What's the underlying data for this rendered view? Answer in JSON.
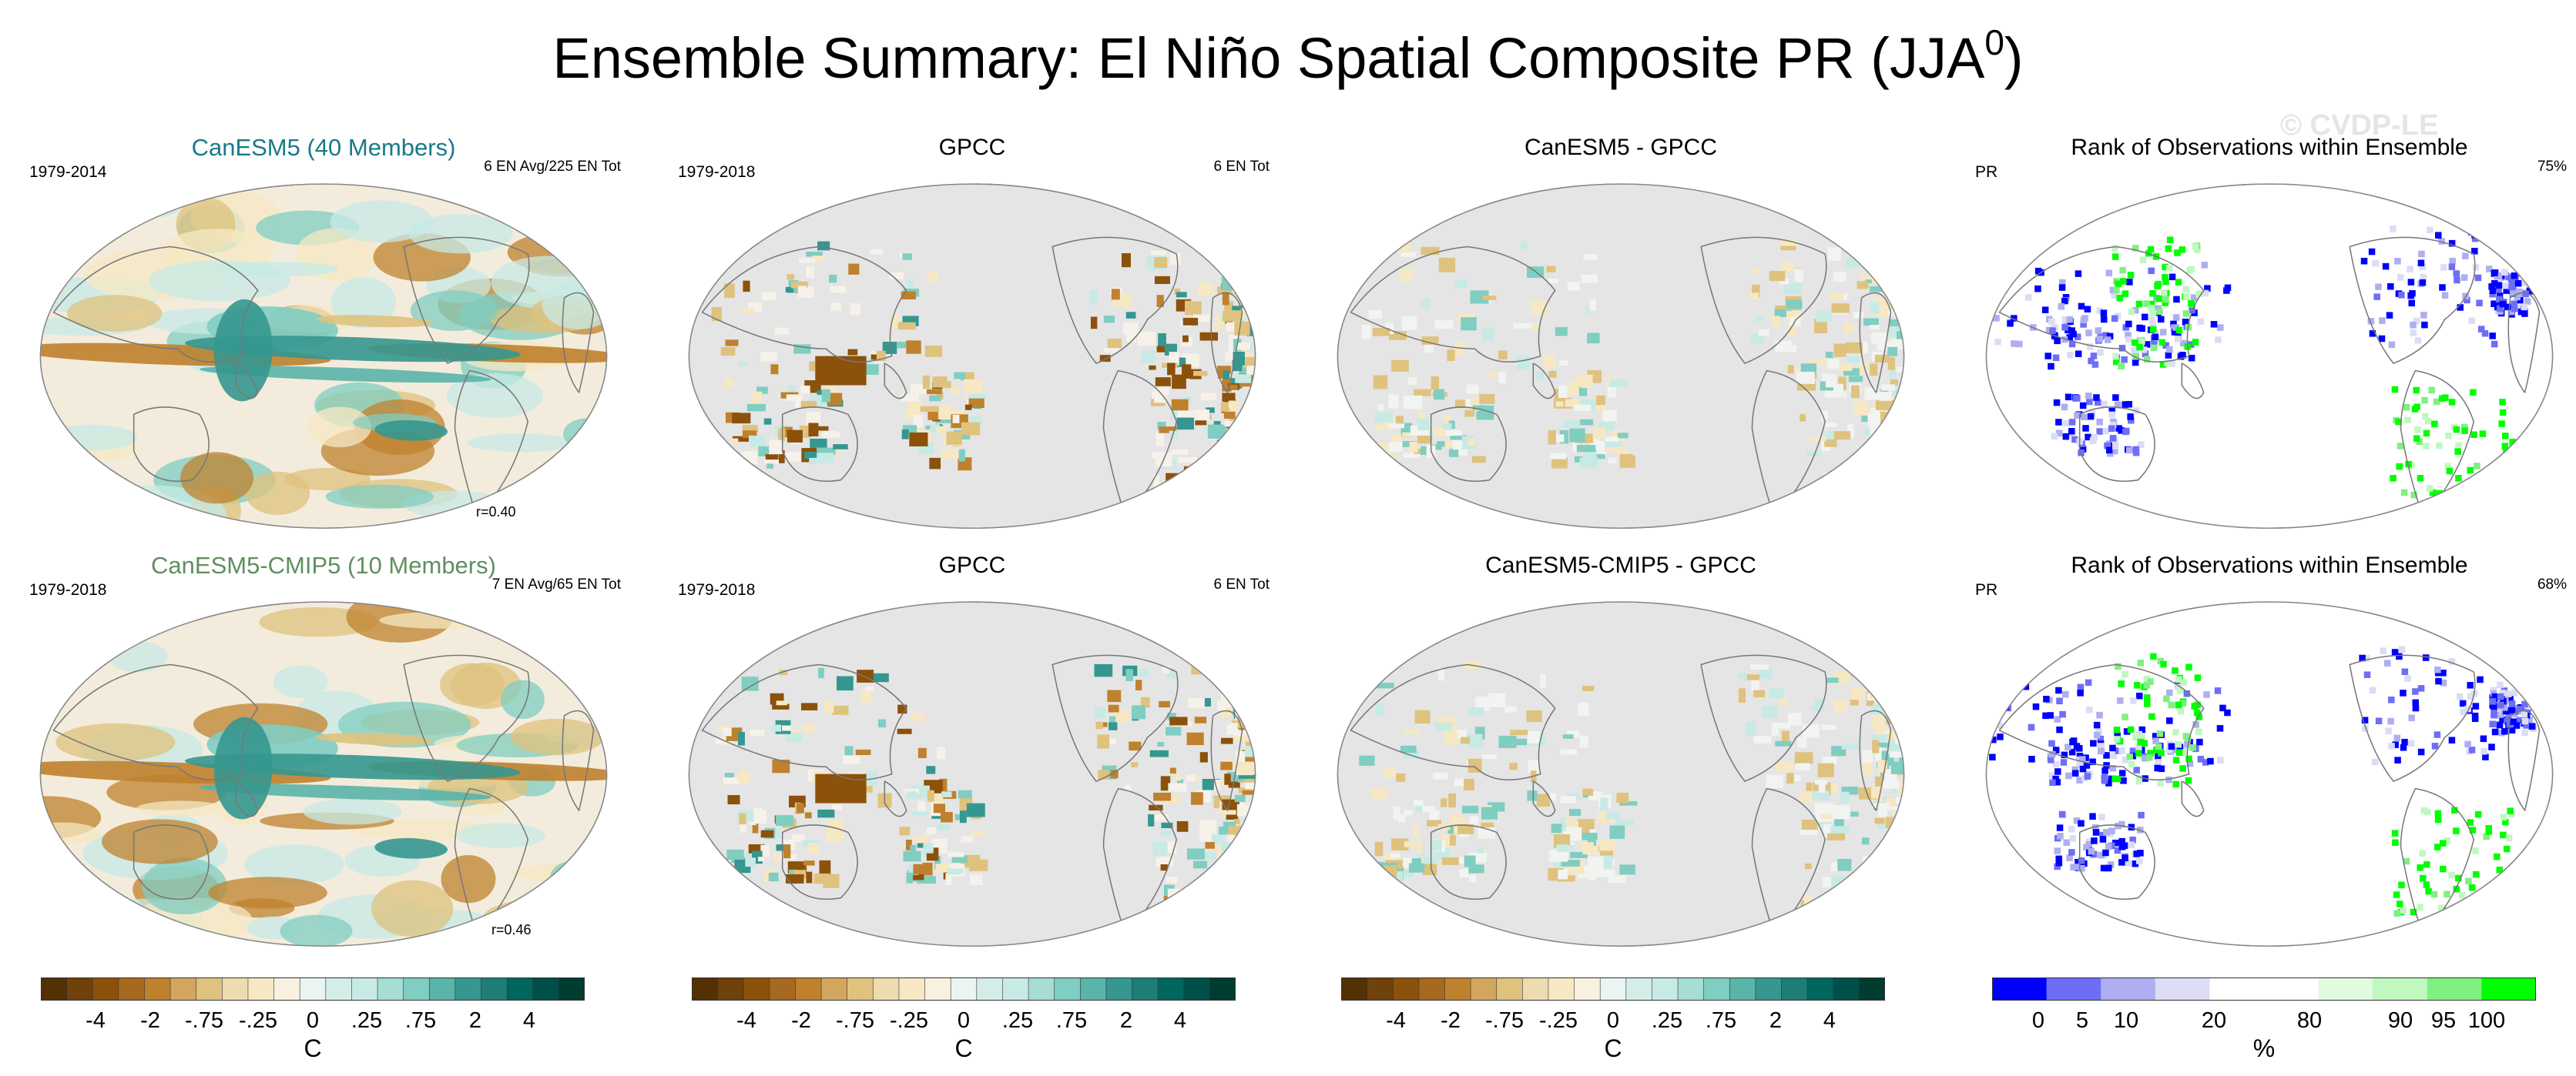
{
  "title": {
    "main": "Ensemble Summary: El Niño Spatial Composite PR (JJA",
    "superscript": "0",
    "suffix": ")"
  },
  "watermark": "© CVDP-LE",
  "panels": [
    {
      "title": "CanESM5 (40 Members)",
      "title_color": "#197a8a",
      "left_text": "1979-2014",
      "right_text": "6 EN Avg/225 EN Tot",
      "corr_text": "r=0.40",
      "kind": "model"
    },
    {
      "title": "GPCC",
      "title_color": "#000000",
      "left_text": "1979-2018",
      "right_text": "6 EN Tot",
      "corr_text": "",
      "kind": "obs"
    },
    {
      "title": "CanESM5 - GPCC",
      "title_color": "#000000",
      "left_text": "",
      "right_text": "",
      "corr_text": "",
      "kind": "diff"
    },
    {
      "title": "Rank of Observations within Ensemble",
      "title_color": "#000000",
      "left_text": "PR",
      "right_text": "75%",
      "corr_text": "",
      "kind": "rank"
    },
    {
      "title": "CanESM5-CMIP5 (10 Members)",
      "title_color": "#5f8f60",
      "left_text": "1979-2018",
      "right_text": "7 EN Avg/65 EN Tot",
      "corr_text": "r=0.46",
      "kind": "model"
    },
    {
      "title": "GPCC",
      "title_color": "#000000",
      "left_text": "1979-2018",
      "right_text": "6 EN Tot",
      "corr_text": "",
      "kind": "obs"
    },
    {
      "title": "CanESM5-CMIP5 - GPCC",
      "title_color": "#000000",
      "left_text": "",
      "right_text": "",
      "corr_text": "",
      "kind": "diff"
    },
    {
      "title": "Rank of Observations within Ensemble",
      "title_color": "#000000",
      "left_text": "PR",
      "right_text": "68%",
      "corr_text": "",
      "kind": "rank"
    }
  ],
  "colorbars": [
    {
      "unit": "C",
      "ticks": [
        "-4",
        "-2",
        "-.75",
        "-.25",
        "0",
        ".25",
        ".75",
        "2",
        "4"
      ],
      "colors": [
        "#543005",
        "#6f410b",
        "#8c510a",
        "#a6691f",
        "#bf812d",
        "#d3a660",
        "#dfc27d",
        "#eddcb0",
        "#f6e8c3",
        "#f9f1e0",
        "#eaf4f3",
        "#d4ede9",
        "#c7eae5",
        "#a6ddd5",
        "#80cdc1",
        "#5ab4a8",
        "#35978f",
        "#1e7d75",
        "#01665e",
        "#00504a",
        "#003c30"
      ]
    },
    {
      "unit": "C",
      "ticks": [
        "-4",
        "-2",
        "-.75",
        "-.25",
        "0",
        ".25",
        ".75",
        "2",
        "4"
      ],
      "colors": [
        "#543005",
        "#6f410b",
        "#8c510a",
        "#a6691f",
        "#bf812d",
        "#d3a660",
        "#dfc27d",
        "#eddcb0",
        "#f6e8c3",
        "#f9f1e0",
        "#eaf4f3",
        "#d4ede9",
        "#c7eae5",
        "#a6ddd5",
        "#80cdc1",
        "#5ab4a8",
        "#35978f",
        "#1e7d75",
        "#01665e",
        "#00504a",
        "#003c30"
      ]
    },
    {
      "unit": "C",
      "ticks": [
        "-4",
        "-2",
        "-.75",
        "-.25",
        "0",
        ".25",
        ".75",
        "2",
        "4"
      ],
      "colors": [
        "#543005",
        "#6f410b",
        "#8c510a",
        "#a6691f",
        "#bf812d",
        "#d3a660",
        "#dfc27d",
        "#eddcb0",
        "#f6e8c3",
        "#f9f1e0",
        "#eaf4f3",
        "#d4ede9",
        "#c7eae5",
        "#a6ddd5",
        "#80cdc1",
        "#5ab4a8",
        "#35978f",
        "#1e7d75",
        "#01665e",
        "#00504a",
        "#003c30"
      ]
    },
    {
      "unit": "%",
      "ticks": [
        "0",
        "5",
        "10",
        "20",
        "80",
        "90",
        "95",
        "100"
      ],
      "colors": [
        "#0000ff",
        "#6e6ef5",
        "#aeaef0",
        "#dcdcf5",
        "#ffffff",
        "#ffffff",
        "#e0fbe0",
        "#c0f8c0",
        "#80f080",
        "#00ff00"
      ]
    }
  ],
  "chart_data": {
    "type": "heatmap",
    "title": "Ensemble Summary: El Niño Spatial Composite PR (JJA0)",
    "projection": "global-ellipse",
    "panels": 8,
    "legend": "bottom"
  }
}
